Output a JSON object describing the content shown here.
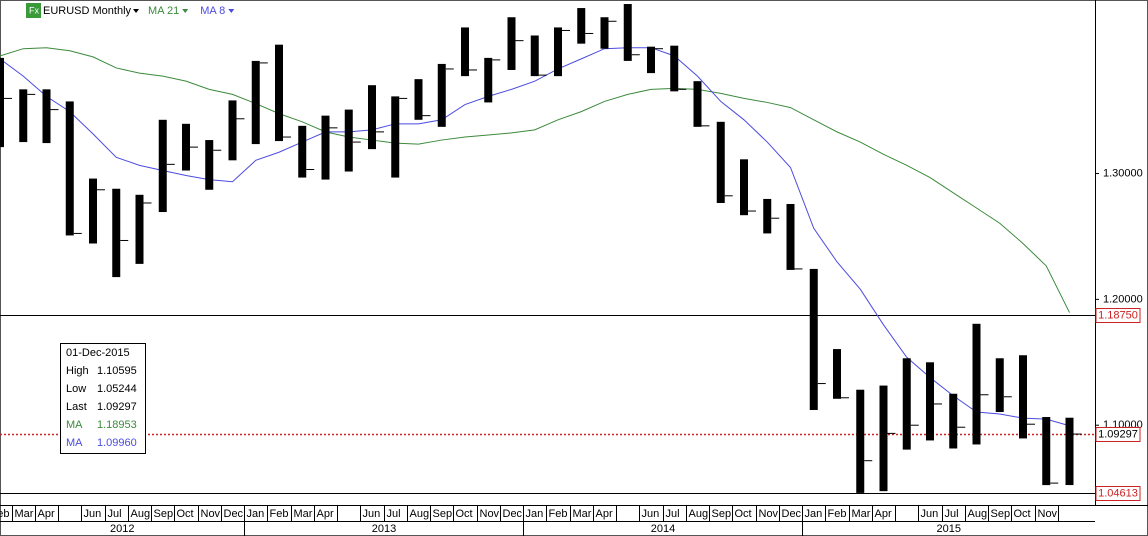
{
  "chart_data": {
    "type": "ohlc",
    "title": "EURUSD Monthly",
    "categories": [
      "Feb",
      "Mar",
      "Apr",
      null,
      "Jun",
      "Jul",
      "Aug",
      "Sep",
      "Oct",
      "Nov",
      "Dec",
      "Jan",
      "Feb",
      "Mar",
      "Apr",
      null,
      "Jun",
      "Jul",
      "Aug",
      "Sep",
      "Oct",
      "Nov",
      "Dec",
      "Jan",
      "Feb",
      "Mar",
      "Apr",
      null,
      "Jun",
      "Jul",
      "Aug",
      "Sep",
      "Oct",
      "Nov",
      "Dec",
      "Jan",
      "Feb",
      "Mar",
      "Apr",
      null,
      "Jun",
      "Jul",
      "Aug",
      "Sep",
      "Oct",
      "Nov",
      null
    ],
    "years": [
      "2012",
      "2013",
      "2014",
      "2015"
    ],
    "color": "#000000",
    "high": [
      1.3919,
      1.3669,
      1.3669,
      1.3573,
      1.296,
      1.2879,
      1.2831,
      1.3427,
      1.3395,
      1.3266,
      1.3581,
      1.3895,
      1.4024,
      1.3379,
      1.346,
      1.3508,
      1.3702,
      1.3613,
      1.375,
      1.3871,
      1.4161,
      1.3919,
      1.4242,
      1.4097,
      1.4161,
      1.4315,
      1.4242,
      1.4347,
      1.4008,
      1.4016,
      1.3734,
      1.3411,
      1.3113,
      1.2798,
      1.2758,
      1.2242,
      1.1605,
      1.1282,
      1.1315,
      1.1532,
      1.15,
      1.125,
      1.1806,
      1.1532,
      1.1556,
      1.1065,
      1.10595
    ],
    "low": [
      1.321,
      1.325,
      1.3242,
      1.2508,
      1.2444,
      1.2177,
      1.2282,
      1.2694,
      1.3024,
      1.2871,
      1.3105,
      1.3234,
      1.3258,
      1.2968,
      1.2952,
      1.3016,
      1.3194,
      1.2968,
      1.3427,
      1.3371,
      1.3774,
      1.3565,
      1.3823,
      1.3774,
      1.3774,
      1.4032,
      1.3992,
      1.3895,
      1.3798,
      1.3653,
      1.3371,
      1.2766,
      1.2669,
      1.2524,
      1.2234,
      1.1121,
      1.121,
      1.0462,
      1.0476,
      1.0806,
      1.0879,
      1.0815,
      1.0847,
      1.1105,
      1.0895,
      1.0524,
      1.05244
    ],
    "close": [
      1.3597,
      1.3629,
      1.3508,
      1.2524,
      1.2871,
      1.2468,
      1.2766,
      1.3073,
      1.321,
      1.3185,
      1.3435,
      1.3879,
      1.329,
      1.3032,
      1.3363,
      1.325,
      1.3331,
      1.3597,
      1.346,
      1.3831,
      1.3823,
      1.3903,
      1.4056,
      1.3782,
      1.4137,
      1.4113,
      1.421,
      1.3944,
      1.3992,
      1.3669,
      1.3379,
      1.2823,
      1.2702,
      1.2645,
      1.2242,
      1.1331,
      1.1218,
      1.0718,
      1.0935,
      1.1,
      1.1169,
      1.0984,
      1.1242,
      1.1226,
      1.1008,
      1.054,
      1.09297
    ],
    "series": [
      {
        "name": "MA 21",
        "color": "#3c8a3c",
        "values": [
          1.3935,
          1.3992,
          1.4,
          1.3976,
          1.3927,
          1.3839,
          1.3798,
          1.3774,
          1.3734,
          1.3669,
          1.3629,
          1.3556,
          1.3476,
          1.3411,
          1.3331,
          1.329,
          1.3266,
          1.3242,
          1.3234,
          1.3266,
          1.329,
          1.3306,
          1.3323,
          1.3347,
          1.3427,
          1.3492,
          1.3573,
          1.3629,
          1.3669,
          1.3677,
          1.3669,
          1.3637,
          1.3597,
          1.3565,
          1.3524,
          1.3427,
          1.3331,
          1.325,
          1.3153,
          1.3065,
          1.2968,
          1.2847,
          1.2726,
          1.2605,
          1.2444,
          1.2266,
          1.18953
        ]
      },
      {
        "name": "MA 8",
        "color": "#4b4be0",
        "values": [
          1.3911,
          1.3774,
          1.3613,
          1.3492,
          1.3315,
          1.3129,
          1.3065,
          1.3024,
          1.2984,
          1.2952,
          1.2935,
          1.3105,
          1.3169,
          1.325,
          1.3331,
          1.3331,
          1.3347,
          1.3395,
          1.3395,
          1.3427,
          1.3548,
          1.3613,
          1.3669,
          1.3734,
          1.3831,
          1.3911,
          1.3992,
          1.4,
          1.4,
          1.3935,
          1.3774,
          1.3573,
          1.3427,
          1.325,
          1.3048,
          1.2565,
          1.2298,
          1.2081,
          1.1798,
          1.154,
          1.1379,
          1.1234,
          1.1105,
          1.1089,
          1.1056,
          1.1048,
          1.0996
        ]
      }
    ],
    "ylim": [
      1.04613,
      1.4379
    ],
    "yticks": [
      {
        "value": 1.1,
        "label": "1.10000"
      },
      {
        "value": 1.2,
        "label": "1.20000"
      },
      {
        "value": 1.3,
        "label": "1.30000"
      }
    ],
    "price_lines": [
      {
        "value": 1.1875,
        "label": "1.18750",
        "color": "#000000",
        "text_color": "#cc2222",
        "style": "solid"
      },
      {
        "value": 1.09297,
        "label": "1.09297",
        "color": "#cc2222",
        "text_color": "#000000",
        "style": "dotted"
      },
      {
        "value": 1.04613,
        "label": "1.04613",
        "color": "#000000",
        "text_color": "#cc2222",
        "style": "solid"
      }
    ],
    "info": [
      {
        "label": "01-Dec-2015",
        "value": null,
        "color": "#000000"
      },
      {
        "label": "High",
        "value": "1.10595",
        "color": "#000000"
      },
      {
        "label": "Low",
        "value": "1.05244",
        "color": "#000000"
      },
      {
        "label": "Last",
        "value": "1.09297",
        "color": "#000000"
      },
      {
        "label": "MA",
        "value": "1.18953",
        "color": "#3c8a3c"
      },
      {
        "label": "MA",
        "value": "1.09960",
        "color": "#4b4be0"
      }
    ]
  }
}
